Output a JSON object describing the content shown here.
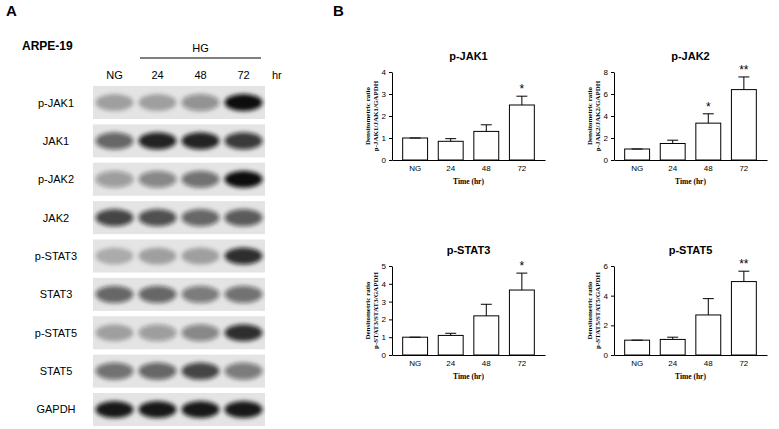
{
  "chart_data": [
    {
      "type": "western_blot",
      "panel_label": "A",
      "title": "ARPE-19",
      "columns": [
        "NG",
        "24",
        "48",
        "72"
      ],
      "group_label": "HG",
      "unit": "hr",
      "rows": [
        {
          "name": "p-JAK1",
          "intensities": [
            0.3,
            0.3,
            0.4,
            1.0
          ]
        },
        {
          "name": "JAK1",
          "intensities": [
            0.6,
            0.9,
            0.9,
            0.8
          ]
        },
        {
          "name": "p-JAK2",
          "intensities": [
            0.35,
            0.45,
            0.55,
            1.0
          ]
        },
        {
          "name": "JAK2",
          "intensities": [
            0.75,
            0.7,
            0.6,
            0.65
          ]
        },
        {
          "name": "p-STAT3",
          "intensities": [
            0.25,
            0.3,
            0.3,
            0.85
          ]
        },
        {
          "name": "STAT3",
          "intensities": [
            0.6,
            0.6,
            0.5,
            0.55
          ]
        },
        {
          "name": "p-STAT5",
          "intensities": [
            0.3,
            0.35,
            0.45,
            0.85
          ]
        },
        {
          "name": "STAT5",
          "intensities": [
            0.55,
            0.6,
            0.75,
            0.5
          ]
        },
        {
          "name": "GAPDH",
          "intensities": [
            0.95,
            0.95,
            0.95,
            0.95
          ]
        }
      ]
    },
    {
      "type": "bar",
      "panel_label": "B",
      "title": "p-JAK1",
      "ylabel": [
        "Densitometric ratio",
        "p-JAK1/JAK1/GAPDH"
      ],
      "xlabel": "Time (hr)",
      "categories": [
        "NG",
        "24",
        "48",
        "72"
      ],
      "values": [
        1,
        0.85,
        1.3,
        2.5
      ],
      "errors": [
        0,
        0.12,
        0.3,
        0.4
      ],
      "annotations": [
        null,
        null,
        null,
        "*"
      ],
      "color": "#ffffff",
      "ylim": [
        0,
        4
      ],
      "yticks": [
        0,
        1,
        2,
        3,
        4
      ]
    },
    {
      "type": "bar",
      "title": "p-JAK2",
      "ylabel": [
        "Densitometric ratio",
        "p-JAK2/JAK2/GAPDH"
      ],
      "xlabel": "Time (hr)",
      "categories": [
        "NG",
        "24",
        "48",
        "72"
      ],
      "values": [
        1,
        1.5,
        3.35,
        6.4
      ],
      "errors": [
        0,
        0.3,
        0.85,
        1.15
      ],
      "annotations": [
        null,
        null,
        "*",
        "**"
      ],
      "color": "#ffffff",
      "ylim": [
        0,
        8
      ],
      "yticks": [
        0,
        2,
        4,
        6,
        8
      ]
    },
    {
      "type": "bar",
      "title": "p-STAT3",
      "ylabel": [
        "Densitometric ratio",
        "p-STAT3/STAT3/GAPDH"
      ],
      "xlabel": "Time (hr)",
      "categories": [
        "NG",
        "24",
        "48",
        "72"
      ],
      "values": [
        1,
        1.1,
        2.2,
        3.65
      ],
      "errors": [
        0,
        0.12,
        0.65,
        0.95
      ],
      "annotations": [
        null,
        null,
        null,
        "*"
      ],
      "color": "#ffffff",
      "ylim": [
        0,
        5
      ],
      "yticks": [
        0,
        1,
        2,
        3,
        4,
        5
      ]
    },
    {
      "type": "bar",
      "title": "p-STAT5",
      "ylabel": [
        "Densitometric ratio",
        "p-STAT5/STAT5/GAPDH"
      ],
      "xlabel": "Time (hr)",
      "categories": [
        "NG",
        "24",
        "48",
        "72"
      ],
      "values": [
        1,
        1.05,
        2.7,
        4.95
      ],
      "errors": [
        0,
        0.15,
        1.1,
        0.7
      ],
      "annotations": [
        null,
        null,
        null,
        "**"
      ],
      "color": "#ffffff",
      "ylim": [
        0,
        6
      ],
      "yticks": [
        0,
        2,
        4,
        6
      ]
    }
  ]
}
